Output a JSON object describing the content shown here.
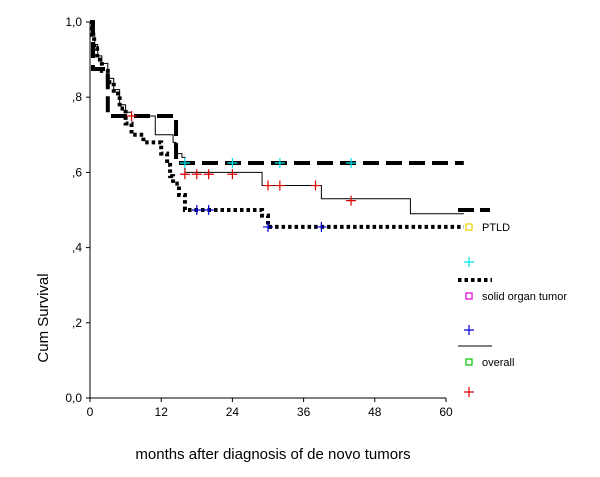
{
  "chart_data": {
    "type": "line",
    "title": "",
    "xlabel": "months after diagnosis of de novo tumors",
    "ylabel": "Cum Survival",
    "xlim": [
      0,
      60
    ],
    "ylim": [
      0,
      1
    ],
    "x_ticks": [
      "0",
      "12",
      "24",
      "36",
      "48",
      "60"
    ],
    "y_ticks": [
      "0,0",
      ",2",
      ",4",
      ",6",
      ",8",
      "1,0"
    ],
    "grid": false,
    "legend_placement": "right",
    "legend": [
      {
        "label": "PTLD",
        "line_style": "dashed-thick",
        "censor_color": "#00e5e5"
      },
      {
        "label": "solid organ tumor",
        "line_style": "dotted-thick",
        "censor_color": "#0000dd"
      },
      {
        "label": "overall",
        "line_style": "solid-thin",
        "censor_color": "#e00000"
      }
    ],
    "legend_markers": [
      {
        "symbol": "square",
        "color": "#e6d200"
      },
      {
        "symbol": "square",
        "color": "#e000e0"
      },
      {
        "symbol": "square",
        "color": "#00c000"
      }
    ],
    "series": [
      {
        "name": "PTLD",
        "style": "dashed",
        "color": "#000000",
        "steps": [
          [
            0,
            1.0
          ],
          [
            0.5,
            0.875
          ],
          [
            2.5,
            0.875
          ],
          [
            3,
            0.75
          ],
          [
            14,
            0.75
          ],
          [
            14.5,
            0.625
          ],
          [
            63,
            0.625
          ]
        ],
        "censored": [
          [
            16,
            0.625
          ],
          [
            24,
            0.625
          ],
          [
            32,
            0.625
          ],
          [
            44,
            0.625
          ]
        ]
      },
      {
        "name": "solid organ tumor",
        "style": "dotted",
        "color": "#000000",
        "steps": [
          [
            0,
            1.0
          ],
          [
            0.3,
            0.96
          ],
          [
            0.7,
            0.93
          ],
          [
            1.2,
            0.9
          ],
          [
            2,
            0.87
          ],
          [
            3,
            0.84
          ],
          [
            4,
            0.81
          ],
          [
            5,
            0.77
          ],
          [
            6,
            0.73
          ],
          [
            7,
            0.7
          ],
          [
            9,
            0.68
          ],
          [
            12,
            0.65
          ],
          [
            13,
            0.62
          ],
          [
            13.5,
            0.59
          ],
          [
            14,
            0.57
          ],
          [
            15,
            0.54
          ],
          [
            16,
            0.5
          ],
          [
            29,
            0.485
          ],
          [
            30,
            0.455
          ],
          [
            63,
            0.455
          ]
        ],
        "censored": [
          [
            18,
            0.5
          ],
          [
            20,
            0.5
          ],
          [
            30,
            0.455
          ],
          [
            39,
            0.455
          ]
        ]
      },
      {
        "name": "overall",
        "style": "solid",
        "color": "#000000",
        "steps": [
          [
            0,
            1.0
          ],
          [
            0.4,
            0.97
          ],
          [
            0.8,
            0.94
          ],
          [
            1.3,
            0.91
          ],
          [
            2,
            0.89
          ],
          [
            3,
            0.85
          ],
          [
            4,
            0.82
          ],
          [
            5,
            0.78
          ],
          [
            6,
            0.76
          ],
          [
            7,
            0.75
          ],
          [
            10,
            0.75
          ],
          [
            11,
            0.7
          ],
          [
            14,
            0.68
          ],
          [
            14.5,
            0.65
          ],
          [
            15.5,
            0.64
          ],
          [
            16,
            0.6
          ],
          [
            29,
            0.565
          ],
          [
            39,
            0.53
          ],
          [
            54,
            0.49
          ],
          [
            63,
            0.49
          ]
        ],
        "censored": [
          [
            7,
            0.75
          ],
          [
            16,
            0.595
          ],
          [
            18,
            0.595
          ],
          [
            20,
            0.595
          ],
          [
            24,
            0.595
          ],
          [
            30,
            0.565
          ],
          [
            32,
            0.565
          ],
          [
            38,
            0.565
          ],
          [
            44,
            0.525
          ]
        ]
      }
    ],
    "right_markers": [
      {
        "symbol": "dash",
        "y": 0.5,
        "style": "dashed"
      }
    ]
  }
}
